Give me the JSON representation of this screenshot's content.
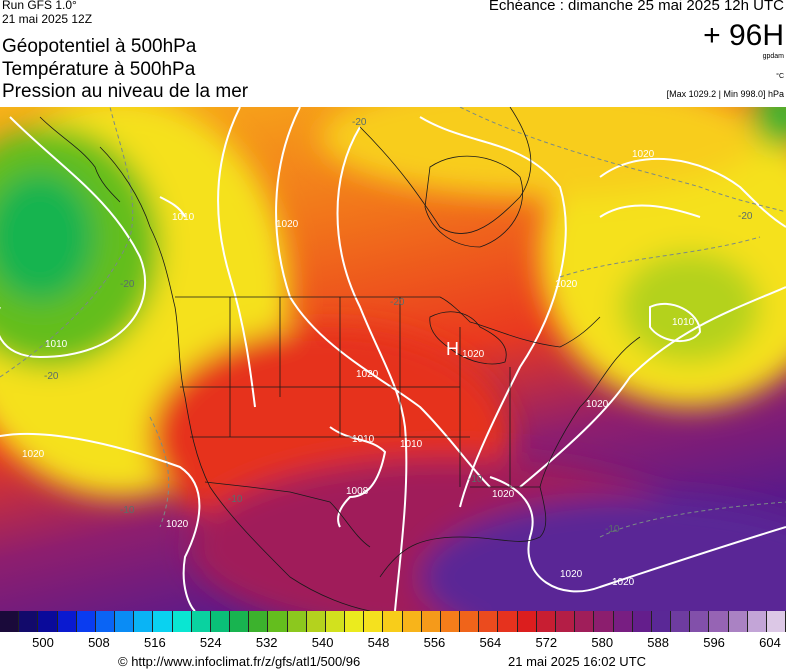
{
  "header": {
    "run": "Run GFS 1.0°",
    "run_date": "21 mai 2025 12Z",
    "titles": [
      "Géopotentiel à 500hPa",
      "Température à 500hPa",
      "Pression au niveau de la mer"
    ],
    "echeance": "Echéance : dimanche 25 mai 2025 12h UTC",
    "forecast_hour": "+ 96H",
    "unit_geopotential": "gpdam",
    "unit_temperature": "°C",
    "pressure_extremes": "[Max 1029.2 | Min 998.0] hPa"
  },
  "map": {
    "isobar_labels": [
      "1010",
      "1020",
      "1020",
      "1010",
      "1020",
      "1020",
      "1020",
      "1020",
      "1020",
      "1020",
      "1010",
      "1010",
      "1008",
      "1020",
      "1020",
      "1010"
    ],
    "temperature_labels": [
      "-20",
      "-20",
      "-20",
      "-20",
      "-20",
      "-10",
      "-10",
      "-10",
      "-10"
    ],
    "high_label": "H",
    "high_value": "1020",
    "colors": {
      "green": "#33b233",
      "yellow": "#f5ee20",
      "orange": "#f8b21a",
      "deep_orange": "#f1701b",
      "red": "#ea3a1f",
      "crimson": "#cc1b3b",
      "magenta": "#8e1e6e",
      "purple": "#5a1a8a",
      "isobar": "#ffffff",
      "isotherm": "#7a8a86"
    }
  },
  "colorbar": {
    "ticks": [
      "500",
      "508",
      "516",
      "524",
      "532",
      "540",
      "548",
      "556",
      "564",
      "572",
      "580",
      "588",
      "596",
      "604"
    ],
    "colors": [
      "#1a0a3a",
      "#120a6b",
      "#0a0a9a",
      "#0a1ad0",
      "#0a3cf0",
      "#0a64f5",
      "#0a8cf5",
      "#0ab4f5",
      "#0ad2f0",
      "#0ae6d2",
      "#0ad2a0",
      "#0abf78",
      "#18b450",
      "#3cb22d",
      "#64be1e",
      "#8cc81e",
      "#b4d21e",
      "#d2e11e",
      "#ebeb1e",
      "#f5e11e",
      "#f8cd1a",
      "#f8b41a",
      "#f59a1a",
      "#f57d1a",
      "#f0641a",
      "#eb4b1e",
      "#e6321e",
      "#dc1e1e",
      "#c81e32",
      "#b41e46",
      "#a01e5a",
      "#8c1e6e",
      "#781e82",
      "#641e8c",
      "#5a2896",
      "#6e3ca0",
      "#8250aa",
      "#9664b4",
      "#aa82c3",
      "#c3a5d7",
      "#dcc8e6"
    ]
  },
  "footer": {
    "credit": "© http://www.infoclimat.fr/z/gfs/atl1/500/96",
    "timestamp": "21 mai 2025 16:02 UTC"
  }
}
